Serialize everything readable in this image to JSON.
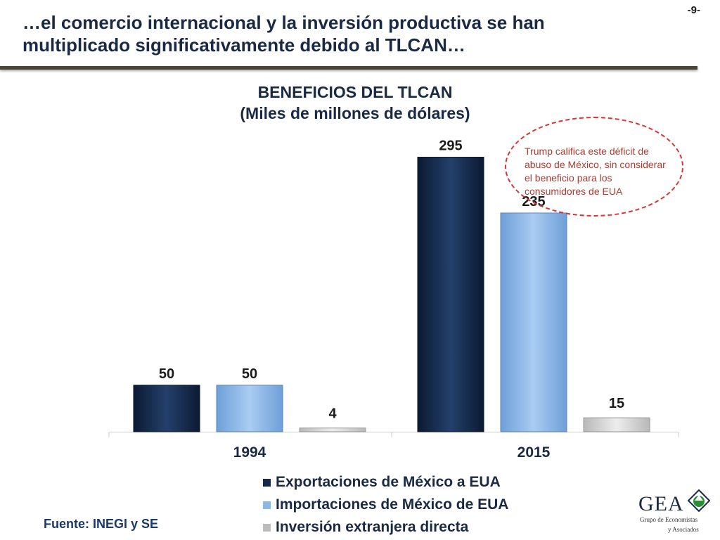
{
  "page_number": "-9-",
  "slide_title": "…el comercio internacional y la inversión productiva se han multiplicado significativamente debido al TLCAN…",
  "callout": "Trump  califica este déficit de abuso de México, sin considerar el beneficio para los consumidores de EUA",
  "source": "Fuente: INEGI y SE",
  "logo": {
    "name": "GEA",
    "line1": "Grupo de Economistas",
    "line2": "y Asociados"
  },
  "colors": {
    "exportaciones": "#14294a",
    "importaciones": "#8db6e6",
    "inversion": "#d9d9d9",
    "title": "#1a2a44",
    "callout": "#d93333"
  },
  "chart_data": {
    "type": "bar",
    "title": "BENEFICIOS DEL TLCAN",
    "subtitle": "(Miles de millones de dólares)",
    "categories": [
      "1994",
      "2015"
    ],
    "series": [
      {
        "name": "Exportaciones de México a EUA",
        "values": [
          50,
          295
        ]
      },
      {
        "name": "Importaciones de México de EUA",
        "values": [
          50,
          235
        ]
      },
      {
        "name": "Inversión extranjera directa",
        "values": [
          4,
          15
        ]
      }
    ],
    "ylim": [
      0,
      300
    ],
    "data_labels": true,
    "legend": "bottom"
  }
}
